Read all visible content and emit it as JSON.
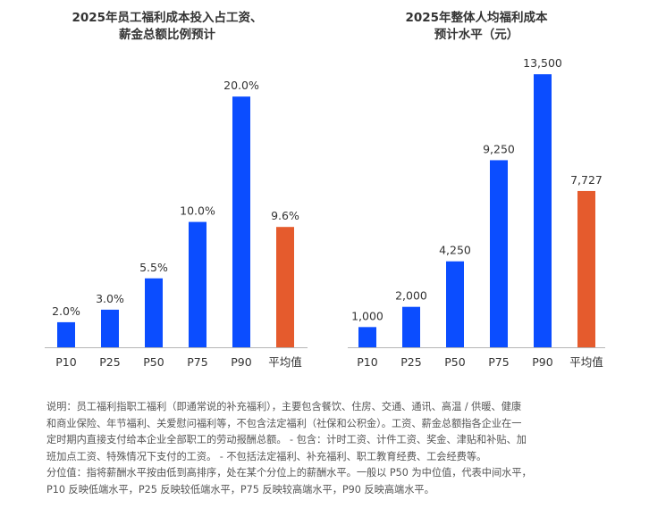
{
  "chart_data": [
    {
      "type": "bar",
      "title_lines": [
        "2025年员工福利成本投入占工资、",
        "薪金总额比例预计"
      ],
      "categories": [
        "P10",
        "P25",
        "P50",
        "P75",
        "P90",
        "平均值"
      ],
      "values": [
        2.0,
        3.0,
        5.5,
        10.0,
        20.0,
        9.6
      ],
      "value_labels": [
        "2.0%",
        "3.0%",
        "5.5%",
        "10.0%",
        "20.0%",
        "9.6%"
      ],
      "unit": "%",
      "ylim": [
        0,
        24
      ],
      "grid": false,
      "colors": [
        "#0b4dff",
        "#0b4dff",
        "#0b4dff",
        "#0b4dff",
        "#0b4dff",
        "#e55b2d"
      ]
    },
    {
      "type": "bar",
      "title_lines": [
        "2025年整体人均福利成本",
        "预计水平（元）"
      ],
      "categories": [
        "P10",
        "P25",
        "P50",
        "P75",
        "P90",
        "平均值"
      ],
      "values": [
        1000,
        2000,
        4250,
        9250,
        13500,
        7727
      ],
      "value_labels": [
        "1,000",
        "2,000",
        "4,250",
        "9,250",
        "13,500",
        "7,727"
      ],
      "unit": "元",
      "ylim": [
        0,
        16200
      ],
      "grid": false,
      "colors": [
        "#0b4dff",
        "#0b4dff",
        "#0b4dff",
        "#0b4dff",
        "#0b4dff",
        "#e55b2d"
      ]
    }
  ],
  "notes": {
    "line1": "说明：员工福利指职工福利（即通常说的补充福利），主要包含餐饮、住房、交通、通讯、高温 / 供暖、健康",
    "line2": "和商业保险、年节福利、关爱慰问福利等，不包含法定福利（社保和公积金）。工资、薪金总额指各企业在一",
    "line3": "定时期内直接支付给本企业全部职工的劳动报酬总额。 - 包含：计时工资、计件工资、奖金、津贴和补贴、加",
    "line4": "班加点工资、特殊情况下支付的工资。 - 不包括法定福利、补充福利、职工教育经费、工会经费等。",
    "line5": "分位值：指将薪酬水平按由低到高排序，处在某个分位上的薪酬水平。一般以 P50 为中位值，代表中间水平，",
    "line6": "P10 反映低端水平，P25 反映较低端水平，P75 反映较高端水平，P90 反映高端水平。"
  }
}
